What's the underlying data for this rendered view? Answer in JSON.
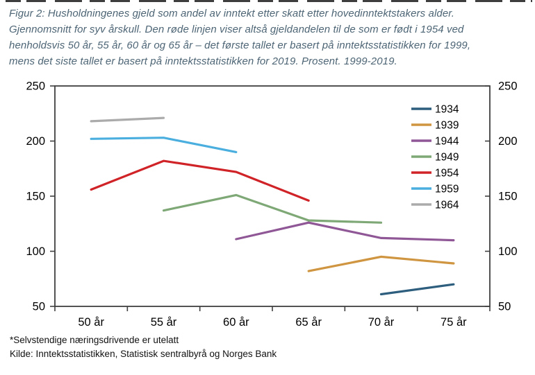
{
  "title": {
    "lines": [
      "Figur 2:  Husholdningenes gjeld som andel av inntekt etter skatt etter hovedinntektstakers alder.",
      "Gjennomsnitt for syv årskull. Den røde linjen viser altså gjeldandelen til de som er født i 1954 ved",
      "henholdsvis 50 år, 55 år, 60 år og 65 år – det første tallet er basert på inntektsstatistikken for 1999,",
      "mens det siste tallet er basert på inntektsstatistikken for 2019.  Prosent. 1999-2019."
    ]
  },
  "footnotes": [
    "*Selvstendige næringsdrivende er utelatt",
    "Kilde: Inntektsstatistikken, Statistisk sentralbyrå og Norges Bank"
  ],
  "chart_data": {
    "type": "line",
    "categories": [
      "50 år",
      "55 år",
      "60 år",
      "65 år",
      "70 år",
      "75 år"
    ],
    "series": [
      {
        "name": "1934",
        "color": "#2e5e7e",
        "values": [
          null,
          null,
          null,
          null,
          61,
          70
        ]
      },
      {
        "name": "1939",
        "color": "#cf9540",
        "values": [
          null,
          null,
          null,
          82,
          95,
          89
        ]
      },
      {
        "name": "1944",
        "color": "#8f5796",
        "values": [
          null,
          null,
          111,
          126,
          112,
          110
        ]
      },
      {
        "name": "1949",
        "color": "#7fa877",
        "values": [
          null,
          137,
          151,
          128,
          126,
          null
        ]
      },
      {
        "name": "1954",
        "color": "#d02328",
        "values": [
          156,
          182,
          172,
          146,
          null,
          null
        ]
      },
      {
        "name": "1959",
        "color": "#4aaede",
        "values": [
          202,
          203,
          190,
          null,
          null,
          null
        ]
      },
      {
        "name": "1964",
        "color": "#ababab",
        "values": [
          218,
          221,
          null,
          null,
          null,
          null
        ]
      }
    ],
    "ylim": [
      50,
      250
    ],
    "yticks": [
      50,
      100,
      150,
      200,
      250
    ],
    "grid": false,
    "legend_position": "top-right",
    "axis_color": "#3f3f3f",
    "dual_axis_labels": true
  }
}
